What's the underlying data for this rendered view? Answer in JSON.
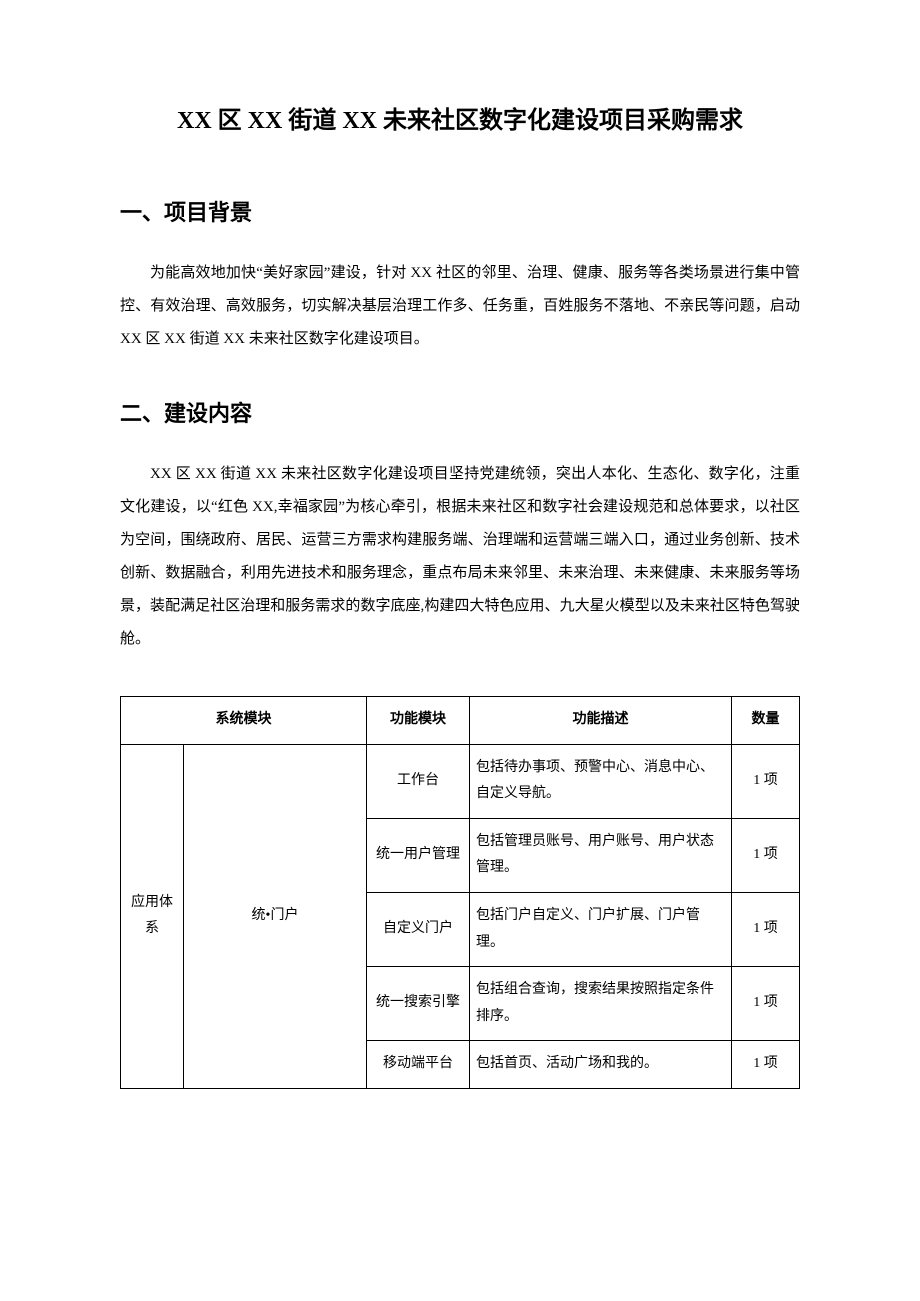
{
  "title": "XX 区 XX 街道 XX 未来社区数字化建设项目采购需求",
  "section1": {
    "heading": "一、项目背景",
    "body": "为能高效地加快“美好家园”建设，针对 XX 社区的邻里、治理、健康、服务等各类场景进行集中管控、有效治理、高效服务，切实解决基层治理工作多、任务重，百姓服务不落地、不亲民等问题，启动 XX 区 XX 街道 XX 未来社区数字化建设项目。"
  },
  "section2": {
    "heading": "二、建设内容",
    "body": "XX 区 XX 街道 XX 未来社区数字化建设项目坚持党建统领，突出人本化、生态化、数字化，注重文化建设，以“红色 XX,幸福家园”为核心牵引，根据未来社区和数字社会建设规范和总体要求，以社区为空间，围绕政府、居民、运营三方需求构建服务端、治理端和运营端三端入口，通过业务创新、技术创新、数据融合，利用先进技术和服务理念，重点布局未来邻里、未来治理、未来健康、未来服务等场景，装配满足社区治理和服务需求的数字底座,构建四大特色应用、九大星火模型以及未来社区特色驾驶舱。"
  },
  "table": {
    "headers": {
      "system_module": "系统模块",
      "func_module": "功能模块",
      "func_desc": "功能描述",
      "qty": "数量"
    },
    "sys_cat": "应用体系",
    "sys_sub": "统•门户",
    "rows": [
      {
        "func": "工作台",
        "desc": "包括待办事项、预警中心、消息中心、自定义导航。",
        "qty": "1 项"
      },
      {
        "func": "统一用户管理",
        "desc": "包括管理员账号、用户账号、用户状态管理。",
        "qty": "1 项"
      },
      {
        "func": "自定义门户",
        "desc": "包括门户自定义、门户扩展、门户管理。",
        "qty": "1 项"
      },
      {
        "func": "统一搜索引擎",
        "desc": "包括组合查询，搜索结果按照指定条件排序。",
        "qty": "1 项"
      },
      {
        "func": "移动端平台",
        "desc": "包括首页、活动广场和我的。",
        "qty": "1 项"
      }
    ]
  }
}
